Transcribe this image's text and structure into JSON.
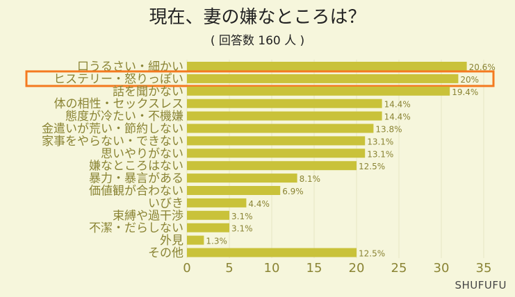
{
  "title": "現在、妻の嫌なところは？",
  "subtitle": "( 回答数 160 人 )",
  "brand": "SHUFUFU",
  "colors": {
    "background": "#f6f6dc",
    "bar": "#c9c23a",
    "label": "#8a8434",
    "highlight": "#f47a20"
  },
  "chart_data": {
    "type": "bar",
    "orientation": "horizontal",
    "categories": [
      "口うるさい・細かい",
      "ヒステリー・怒りっぽい",
      "話を聞かない",
      "体の相性・セックスレス",
      "態度が冷たい・不機嫌",
      "金遣いが荒い・節約しない",
      "家事をやらない・できない",
      "思いやりがない",
      "嫌なところはない",
      "暴力・暴言がある",
      "価値観が合わない",
      "いびき",
      "束縛や過干渉",
      "不潔・だらしない",
      "外見",
      "その他"
    ],
    "values": [
      33,
      32,
      31,
      23,
      23,
      22,
      21,
      21,
      20,
      13,
      11,
      7,
      5,
      5,
      2,
      20
    ],
    "data_labels": [
      "20.6%",
      "20%",
      "19.4%",
      "14.4%",
      "14.4%",
      "13.8%",
      "13.1%",
      "13.1%",
      "12.5%",
      "8.1%",
      "6.9%",
      "4.4%",
      "3.1%",
      "3.1%",
      "1.3%",
      "12.5%"
    ],
    "xlim": [
      0,
      35
    ],
    "x_ticks": [
      "0",
      "5",
      "10",
      "15",
      "20",
      "25",
      "30",
      "35"
    ],
    "highlighted_category": "ヒステリー・怒りっぽい",
    "grid": true
  }
}
